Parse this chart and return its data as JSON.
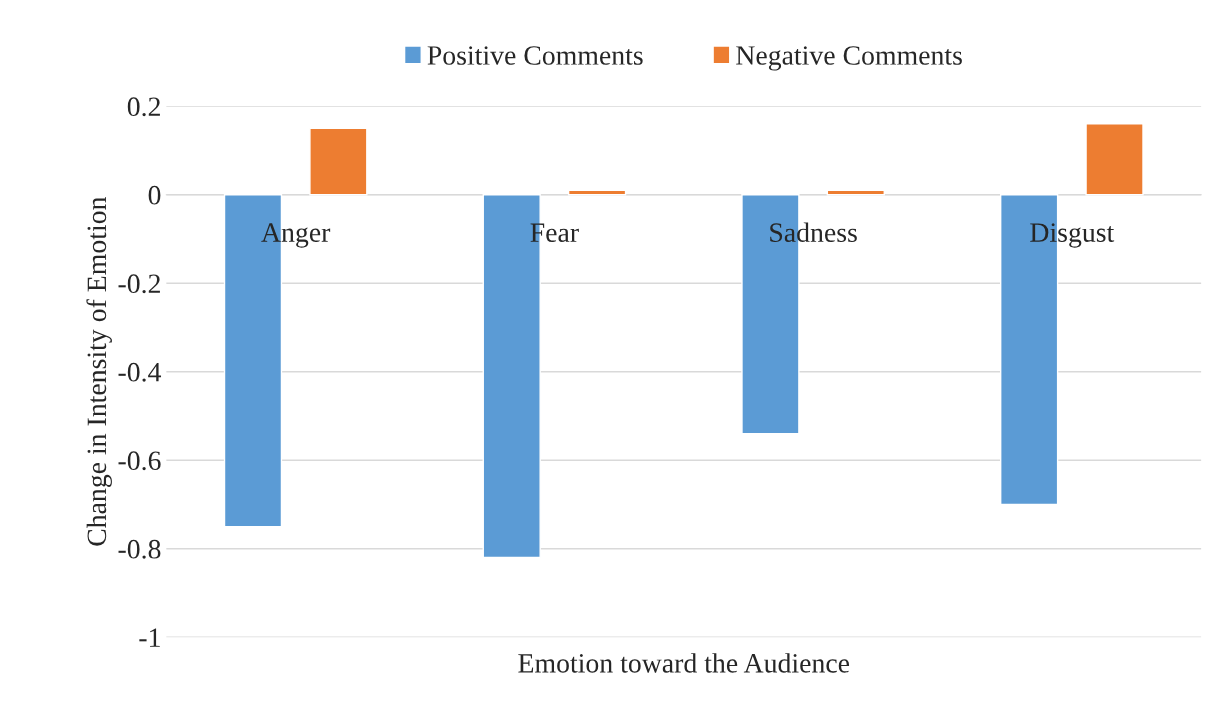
{
  "chart_data": {
    "type": "bar",
    "xlabel": "Emotion toward the Audience",
    "ylabel": "Change in Intensity of Emotion",
    "categories": [
      "Anger",
      "Fear",
      "Sadness",
      "Disgust"
    ],
    "series": [
      {
        "name": "Positive Comments",
        "color": "#5b9bd5",
        "values": [
          -0.75,
          -0.82,
          -0.54,
          -0.7
        ]
      },
      {
        "name": "Negative Comments",
        "color": "#ed7d31",
        "values": [
          0.15,
          0.01,
          0.01,
          0.16
        ]
      }
    ],
    "ylim": [
      -1,
      0.2
    ],
    "yticks": [
      -1,
      -0.8,
      -0.6,
      -0.4,
      -0.2,
      0,
      0.2
    ],
    "grid": "y",
    "legend": "top"
  }
}
